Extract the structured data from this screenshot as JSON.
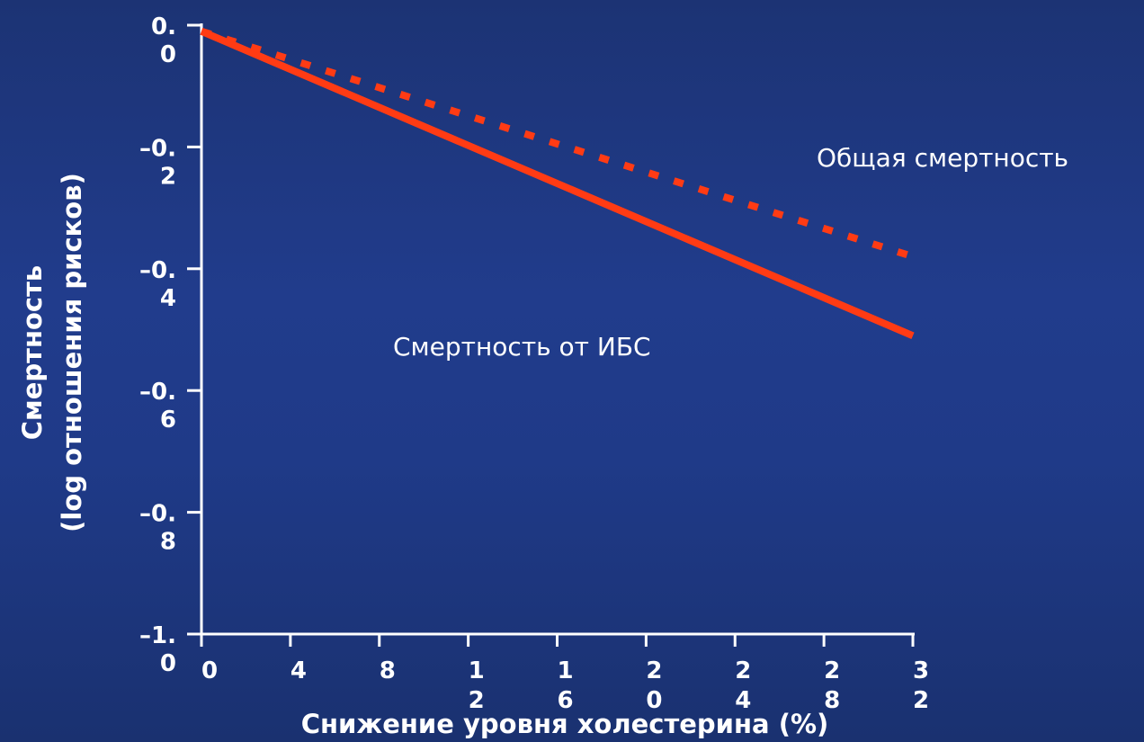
{
  "chart_data": {
    "type": "line",
    "title": "",
    "xlabel": "Снижение уровня холестерина (%)",
    "ylabel_lines": [
      "Смертность",
      "(log отношения рисков)"
    ],
    "x_ticks": [
      0,
      4,
      8,
      12,
      16,
      20,
      24,
      28,
      32
    ],
    "x_tick_labels": [
      [
        "0"
      ],
      [
        "4"
      ],
      [
        "8"
      ],
      [
        "1",
        "2"
      ],
      [
        "1",
        "6"
      ],
      [
        "2",
        "0"
      ],
      [
        "2",
        "4"
      ],
      [
        "2",
        "8"
      ],
      [
        "3",
        "2"
      ]
    ],
    "y_ticks": [
      0.0,
      -0.2,
      -0.4,
      -0.6,
      -0.8,
      -1.0
    ],
    "y_tick_labels": [
      [
        "0.",
        "0"
      ],
      [
        "–0.",
        "2"
      ],
      [
        "–0.",
        "4"
      ],
      [
        "–0.",
        "6"
      ],
      [
        "–0.",
        "8"
      ],
      [
        "–1.",
        "0"
      ]
    ],
    "xlim": [
      0,
      32
    ],
    "ylim": [
      -1.0,
      0.0
    ],
    "grid": false,
    "series": [
      {
        "name": "Смертность от ИБС",
        "line_style": "solid",
        "color": "#ff3b14",
        "x": [
          0,
          32
        ],
        "y": [
          -0.01,
          -0.51
        ]
      },
      {
        "name": "Общая смертность",
        "line_style": "dotted",
        "color": "#ff3b14",
        "x": [
          0,
          32
        ],
        "y": [
          -0.01,
          -0.38
        ]
      }
    ]
  }
}
